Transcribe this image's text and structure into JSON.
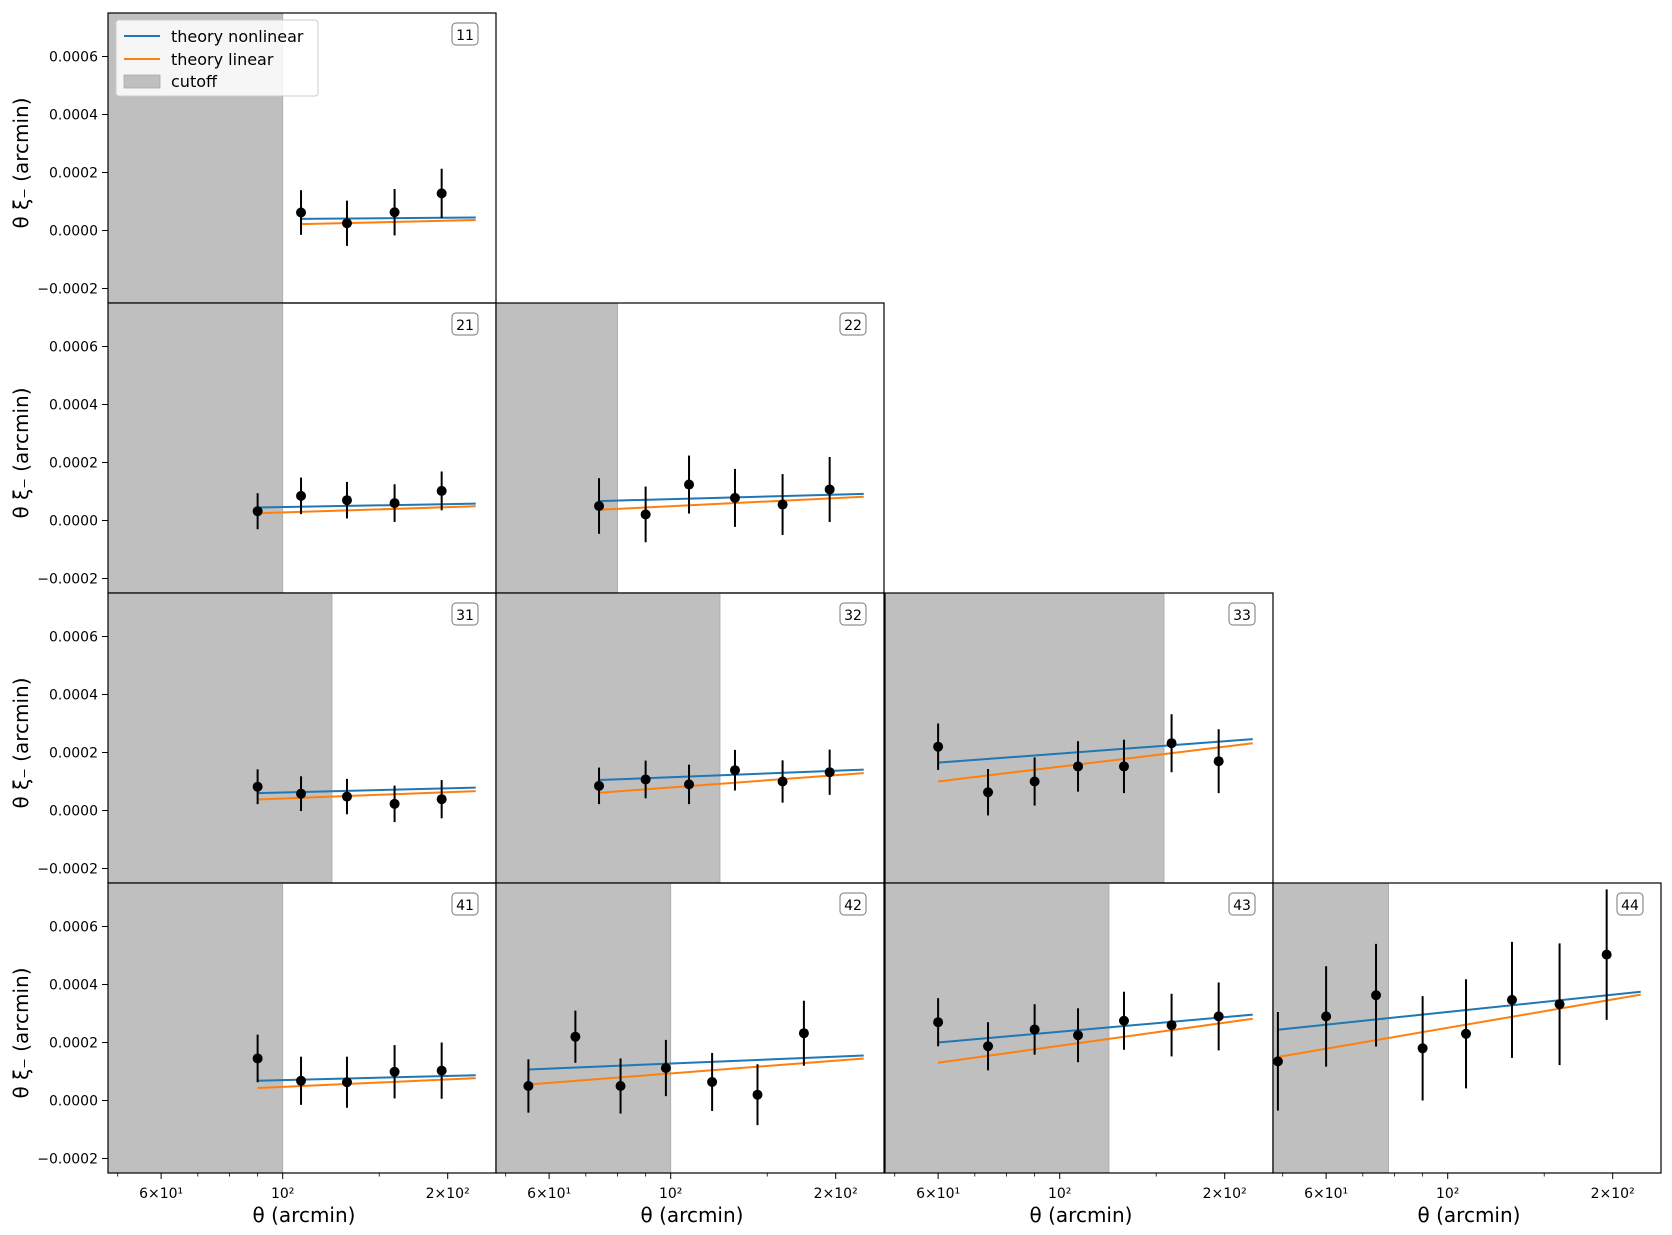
{
  "figure": {
    "xlabel": "θ (arcmin)",
    "ylabel": "θ ξ₋   (arcmin)"
  },
  "legend": {
    "placement": "top-left of panel 11",
    "items": [
      {
        "label": "theory nonlinear",
        "kind": "line",
        "color": "#1f77b4"
      },
      {
        "label": "theory linear",
        "kind": "line",
        "color": "#ff7f0e"
      },
      {
        "label": "cutoff",
        "kind": "patch",
        "color": "#bfbfbf"
      }
    ]
  },
  "chart_data": {
    "type": "line",
    "title": "",
    "xscale": "log",
    "xlim": [
      48,
      245
    ],
    "ylim": [
      -0.00025,
      0.00075
    ],
    "yticks": [
      -0.0002,
      0.0,
      0.0002,
      0.0004,
      0.0006
    ],
    "ytick_labels": [
      "−0.0002",
      "0.0000",
      "0.0002",
      "0.0004",
      "0.0006"
    ],
    "xticks": [
      60,
      100,
      200
    ],
    "xtick_labels": [
      "6×10¹",
      "10²",
      "2×10²"
    ],
    "colors": {
      "nonlinear": "#1f77b4",
      "linear": "#ff7f0e",
      "cutoff": "#bfbfbf",
      "data": "#000000"
    },
    "panels": [
      {
        "label": "11",
        "row": 0,
        "col": 0,
        "cutoff": 100,
        "theory_x": [
          108,
          225
        ],
        "nonlinear": [
          4e-05,
          4.5e-05
        ],
        "linear": [
          2.2e-05,
          3.6e-05
        ],
        "x": [
          108,
          131,
          160,
          195
        ],
        "y": [
          6.2e-05,
          2.5e-05,
          6.3e-05,
          0.000128
        ],
        "err": [
          7.7e-05,
          7.8e-05,
          8e-05,
          8.5e-05
        ]
      },
      {
        "label": "21",
        "row": 1,
        "col": 0,
        "cutoff": 100,
        "theory_x": [
          90,
          225
        ],
        "nonlinear": [
          4.5e-05,
          5.8e-05
        ],
        "linear": [
          2.5e-05,
          4.9e-05
        ],
        "x": [
          90,
          108,
          131,
          160,
          195
        ],
        "y": [
          3.2e-05,
          8.5e-05,
          7e-05,
          6e-05,
          0.000102
        ],
        "err": [
          6.2e-05,
          6.3e-05,
          6.3e-05,
          6.5e-05,
          6.7e-05
        ]
      },
      {
        "label": "22",
        "row": 1,
        "col": 1,
        "cutoff": 80,
        "theory_x": [
          74,
          225
        ],
        "nonlinear": [
          6.7e-05,
          9.2e-05
        ],
        "linear": [
          3.7e-05,
          8.2e-05
        ],
        "x": [
          74,
          90,
          108,
          131,
          160,
          195
        ],
        "y": [
          5e-05,
          2.1e-05,
          0.000124,
          7.8e-05,
          5.5e-05,
          0.000107
        ],
        "err": [
          9.6e-05,
          9.6e-05,
          0.0001,
          0.0001,
          0.000105,
          0.000112
        ]
      },
      {
        "label": "31",
        "row": 2,
        "col": 0,
        "cutoff": 123,
        "theory_x": [
          90,
          225
        ],
        "nonlinear": [
          6e-05,
          7.9e-05
        ],
        "linear": [
          3.8e-05,
          6.7e-05
        ],
        "x": [
          90,
          108,
          131,
          160,
          195
        ],
        "y": [
          8.2e-05,
          5.8e-05,
          4.8e-05,
          2.3e-05,
          3.9e-05
        ],
        "err": [
          6e-05,
          6e-05,
          6.1e-05,
          6.3e-05,
          6.6e-05
        ]
      },
      {
        "label": "32",
        "row": 2,
        "col": 1,
        "cutoff": 123,
        "theory_x": [
          74,
          225
        ],
        "nonlinear": [
          0.000105,
          0.000141
        ],
        "linear": [
          6.1e-05,
          0.000129
        ],
        "x": [
          74,
          90,
          108,
          131,
          160,
          195
        ],
        "y": [
          8.5e-05,
          0.000107,
          9e-05,
          0.000139,
          0.0001,
          0.000132
        ],
        "err": [
          6.3e-05,
          6.5e-05,
          6.8e-05,
          7e-05,
          7.3e-05,
          7.8e-05
        ]
      },
      {
        "label": "33",
        "row": 2,
        "col": 2,
        "cutoff": 155,
        "theory_x": [
          60,
          225
        ],
        "nonlinear": [
          0.000165,
          0.000246
        ],
        "linear": [
          0.0001,
          0.000232
        ],
        "x": [
          60,
          74,
          90,
          108,
          131,
          160,
          195
        ],
        "y": [
          0.00022,
          6.3e-05,
          0.0001,
          0.000152,
          0.000152,
          0.000232,
          0.00017
        ],
        "err": [
          8e-05,
          8e-05,
          8.3e-05,
          8.7e-05,
          9.2e-05,
          0.0001,
          0.00011
        ]
      },
      {
        "label": "41",
        "row": 3,
        "col": 0,
        "cutoff": 100,
        "theory_x": [
          90,
          225
        ],
        "nonlinear": [
          6.8e-05,
          8.7e-05
        ],
        "linear": [
          4.3e-05,
          7.7e-05
        ],
        "x": [
          90,
          108,
          131,
          160,
          195
        ],
        "y": [
          0.000145,
          6.8e-05,
          6.3e-05,
          9.9e-05,
          0.000103
        ],
        "err": [
          8.2e-05,
          8.3e-05,
          8.8e-05,
          9.2e-05,
          9.7e-05
        ]
      },
      {
        "label": "42",
        "row": 3,
        "col": 1,
        "cutoff": 100,
        "theory_x": [
          55,
          225
        ],
        "nonlinear": [
          0.000107,
          0.000155
        ],
        "linear": [
          5.5e-05,
          0.000145
        ],
        "x": [
          55,
          67,
          81,
          98,
          119,
          144,
          175
        ],
        "y": [
          5e-05,
          0.00022,
          5e-05,
          0.000112,
          6.4e-05,
          2e-05,
          0.000232
        ],
        "err": [
          9.2e-05,
          9e-05,
          9.5e-05,
          9.7e-05,
          0.0001,
          0.000105,
          0.000112
        ]
      },
      {
        "label": "43",
        "row": 3,
        "col": 2,
        "cutoff": 123,
        "theory_x": [
          60,
          225
        ],
        "nonlinear": [
          0.0002,
          0.000296
        ],
        "linear": [
          0.00013,
          0.000282
        ],
        "x": [
          60,
          74,
          90,
          108,
          131,
          160,
          195
        ],
        "y": [
          0.00027,
          0.000187,
          0.000245,
          0.000225,
          0.000275,
          0.00026,
          0.00029
        ],
        "err": [
          8.3e-05,
          8.3e-05,
          8.7e-05,
          9.3e-05,
          0.0001,
          0.000108,
          0.000117
        ]
      },
      {
        "label": "44",
        "row": 3,
        "col": 3,
        "cutoff": 78,
        "theory_x": [
          49,
          225
        ],
        "nonlinear": [
          0.000244,
          0.000375
        ],
        "linear": [
          0.00015,
          0.000365
        ],
        "x": [
          49,
          60,
          74,
          90,
          108,
          131,
          160,
          195
        ],
        "y": [
          0.000135,
          0.00029,
          0.000363,
          0.00018,
          0.00023,
          0.000347,
          0.000332,
          0.000503
        ],
        "err": [
          0.00017,
          0.000173,
          0.000177,
          0.00018,
          0.000188,
          0.0002,
          0.00021,
          0.000225
        ]
      }
    ]
  }
}
